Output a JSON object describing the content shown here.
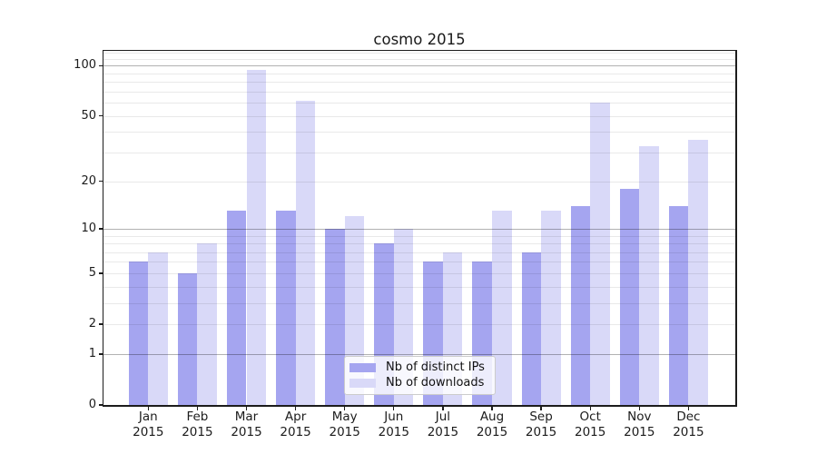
{
  "figure": {
    "title": "cosmo 2015"
  },
  "chart_data": {
    "type": "bar",
    "title": "cosmo 2015",
    "categories": [
      "Jan 2015",
      "Feb 2015",
      "Mar 2015",
      "Apr 2015",
      "May 2015",
      "Jun 2015",
      "Jul 2015",
      "Aug 2015",
      "Sep 2015",
      "Oct 2015",
      "Nov 2015",
      "Dec 2015"
    ],
    "xtick_months": [
      "Jan",
      "Feb",
      "Mar",
      "Apr",
      "May",
      "Jun",
      "Jul",
      "Aug",
      "Sep",
      "Oct",
      "Nov",
      "Dec"
    ],
    "xtick_year": "2015",
    "series": [
      {
        "name": "Nb of distinct IPs",
        "color": "#a5a5f0",
        "values": [
          6,
          5,
          13,
          13,
          10,
          8,
          6,
          6,
          7,
          14,
          18,
          14
        ]
      },
      {
        "name": "Nb of downloads",
        "color": "#d9d9f8",
        "values": [
          7,
          8,
          94,
          62,
          12,
          10,
          7,
          13,
          13,
          60,
          33,
          36
        ]
      }
    ],
    "xlabel": "",
    "ylabel": "",
    "yscale": "log1p",
    "ylim": [
      0,
      123
    ],
    "y_ticks": [
      0,
      1,
      2,
      5,
      10,
      20,
      50,
      100
    ],
    "y_minor_gridlines": [
      3,
      4,
      6,
      7,
      8,
      9,
      30,
      40,
      60,
      70,
      80,
      90,
      110,
      120
    ],
    "y_decade_gridlines": [
      1,
      10,
      100
    ],
    "grid": true,
    "legend_position": "lower center"
  }
}
